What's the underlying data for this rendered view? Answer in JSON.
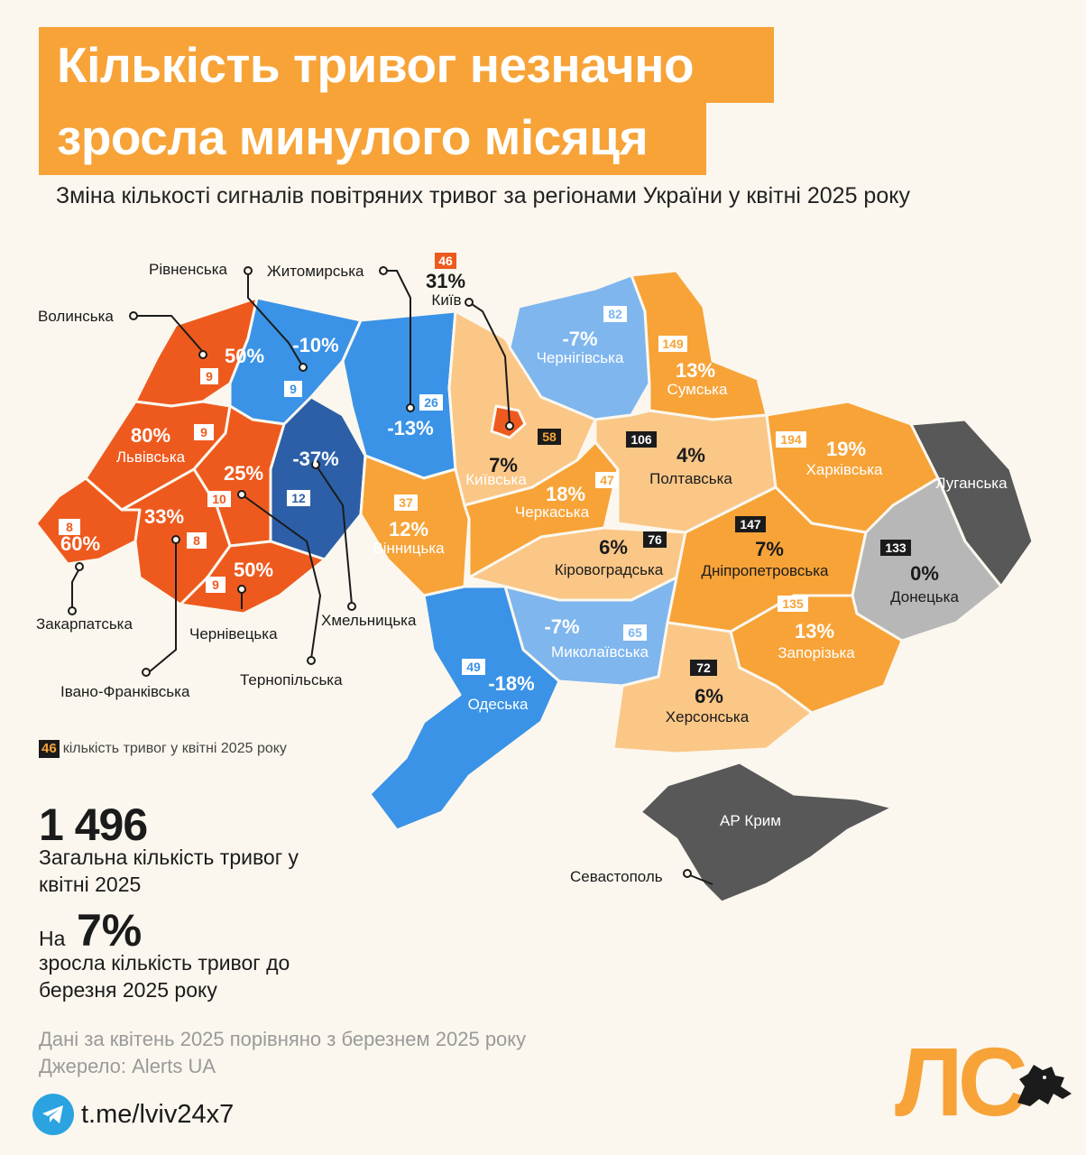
{
  "title_lines": [
    "Кількість тривог незначно",
    "зросла минулого місяця"
  ],
  "subtitle": "Зміна кількості сигналів повітряних тривог за регіонами України у квітні 2025 року",
  "colors": {
    "strong_increase": "#ee5a1e",
    "increase": "#f7a338",
    "small_increase": "#fac787",
    "decrease": "#3a93e6",
    "small_decrease": "#7fb6ee",
    "strong_decrease": "#2c5fa8",
    "zero": "#b7b7b7",
    "occupied": "#585858",
    "accent": "#f7a338"
  },
  "regions": [
    {
      "id": "volyn",
      "name": "Волинська",
      "change": "50%",
      "count": "9"
    },
    {
      "id": "rivne",
      "name": "Рівненська",
      "change": "-10%",
      "count": "9"
    },
    {
      "id": "zhytomyr",
      "name": "Житомирська",
      "change": "-13%",
      "count": "26"
    },
    {
      "id": "kyiv-city",
      "name": "Київ",
      "change": "31%",
      "count": "46"
    },
    {
      "id": "kyiv-oblast",
      "name": "Київська",
      "change": "7%",
      "count": "58"
    },
    {
      "id": "chernihiv",
      "name": "Чернігівська",
      "change": "-7%",
      "count": "82"
    },
    {
      "id": "sumy",
      "name": "Сумська",
      "change": "13%",
      "count": "149"
    },
    {
      "id": "lviv",
      "name": "Львівська",
      "change": "80%",
      "count": "9"
    },
    {
      "id": "ternopil",
      "name": "Тернопільська",
      "change": "25%",
      "count": "10"
    },
    {
      "id": "khmelnytskyi",
      "name": "Хмельницька",
      "change": "-37%",
      "count": "12"
    },
    {
      "id": "vinnytsia",
      "name": "Вінницька",
      "change": "12%",
      "count": "37"
    },
    {
      "id": "cherkasy",
      "name": "Черкаська",
      "change": "18%",
      "count": "47"
    },
    {
      "id": "poltava",
      "name": "Полтавська",
      "change": "4%",
      "count": "106"
    },
    {
      "id": "kharkiv",
      "name": "Харківська",
      "change": "19%",
      "count": "194"
    },
    {
      "id": "luhansk",
      "name": "Луганська",
      "change": "",
      "count": ""
    },
    {
      "id": "zakarpattia",
      "name": "Закарпатська",
      "change": "60%",
      "count": "8"
    },
    {
      "id": "ivano-frankivsk",
      "name": "Івано-Франківська",
      "change": "33%",
      "count": "8"
    },
    {
      "id": "chernivtsi",
      "name": "Чернівецька",
      "change": "50%",
      "count": "9"
    },
    {
      "id": "kirovohrad",
      "name": "Кіровоградська",
      "change": "6%",
      "count": "76"
    },
    {
      "id": "dnipro",
      "name": "Дніпропетровська",
      "change": "7%",
      "count": "147"
    },
    {
      "id": "donetsk",
      "name": "Донецька",
      "change": "0%",
      "count": "133"
    },
    {
      "id": "mykolaiv",
      "name": "Миколаївська",
      "change": "-7%",
      "count": "65"
    },
    {
      "id": "zaporizhzhia",
      "name": "Запорізька",
      "change": "13%",
      "count": "135"
    },
    {
      "id": "odesa",
      "name": "Одеська",
      "change": "-18%",
      "count": "49"
    },
    {
      "id": "kherson",
      "name": "Херсонська",
      "change": "6%",
      "count": "72"
    },
    {
      "id": "crimea",
      "name": "АР Крим",
      "change": "",
      "count": ""
    },
    {
      "id": "sevastopol",
      "name": "Севастополь",
      "change": "",
      "count": ""
    }
  ],
  "legend": {
    "sample": "46",
    "text": "кількість тривог у квітні 2025 року"
  },
  "total": {
    "number": "1 496",
    "text": "Загальна кількість тривог у квітні 2025"
  },
  "growth": {
    "prefix": "На",
    "number": "7%",
    "text": "зросла кількість тривог до березня 2025 року"
  },
  "notes": [
    "Дані за квітень 2025 порівняно з березнем 2025 року",
    "Джерело: Alerts UA"
  ],
  "telegram": {
    "icon": "telegram-icon",
    "link": "t.me/lviv24x7"
  },
  "logo": {
    "text": "ЛС",
    "icon": "lion-icon"
  }
}
